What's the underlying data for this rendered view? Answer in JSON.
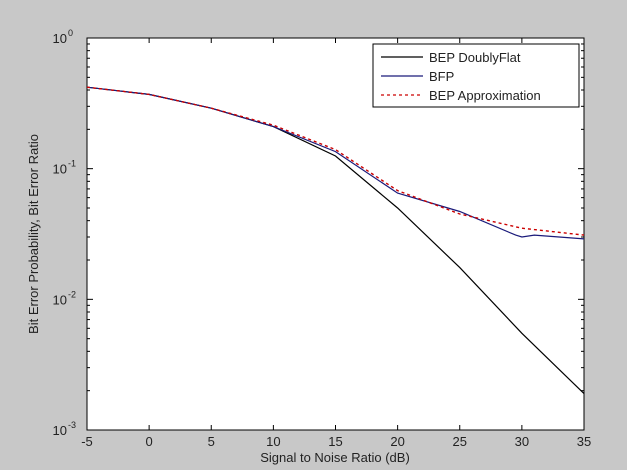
{
  "chart_data": {
    "type": "line",
    "title": "",
    "xlabel": "Signal to Noise Ratio (dB)",
    "ylabel": "Bit Error Probability, Bit Error Ratio",
    "xlim": [
      -5,
      35
    ],
    "ylim": [
      0.001,
      1
    ],
    "yscale": "log",
    "grid": false,
    "legend_position": "top-right",
    "x_ticks": [
      -5,
      0,
      5,
      10,
      15,
      20,
      25,
      30,
      35
    ],
    "y_ticks": [
      0.001,
      0.01,
      0.1,
      1
    ],
    "y_tick_labels": [
      {
        "base": "10",
        "exp": "-3"
      },
      {
        "base": "10",
        "exp": "-2"
      },
      {
        "base": "10",
        "exp": "-1"
      },
      {
        "base": "10",
        "exp": "0"
      }
    ],
    "series": [
      {
        "name": "BEP DoublyFlat",
        "color": "#000000",
        "dash": "solid",
        "x": [
          -5,
          0,
          5,
          10,
          15,
          20,
          25,
          30,
          35
        ],
        "y": [
          0.42,
          0.37,
          0.29,
          0.21,
          0.125,
          0.05,
          0.0175,
          0.0055,
          0.0019
        ]
      },
      {
        "name": "BFP",
        "color": "#1a1a7a",
        "dash": "solid",
        "x": [
          -5,
          0,
          5,
          10,
          15,
          20,
          25,
          29.5,
          30,
          31,
          33,
          35
        ],
        "y": [
          0.42,
          0.37,
          0.29,
          0.21,
          0.135,
          0.065,
          0.047,
          0.031,
          0.03,
          0.031,
          0.03,
          0.029
        ]
      },
      {
        "name": "BEP Approximation",
        "color": "#cc0000",
        "dash": "dotted",
        "x": [
          -5,
          0,
          5,
          10,
          15,
          20,
          25,
          30,
          35
        ],
        "y": [
          0.42,
          0.37,
          0.29,
          0.215,
          0.14,
          0.068,
          0.045,
          0.035,
          0.031
        ]
      }
    ]
  }
}
